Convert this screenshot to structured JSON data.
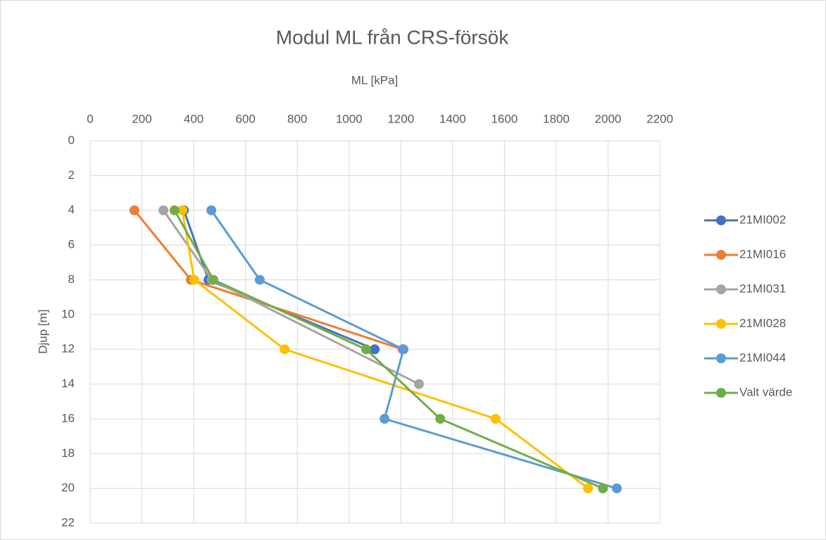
{
  "chart_data": {
    "type": "line",
    "title": "Modul ML från CRS-försök",
    "x_label": "ML [kPa]",
    "y_label": "Djup [m]",
    "xlim": [
      0,
      2200
    ],
    "xticks": [
      0,
      200,
      400,
      600,
      800,
      1000,
      1200,
      1400,
      1600,
      1800,
      2000,
      2200
    ],
    "ylim": [
      0,
      22
    ],
    "yticks": [
      0,
      2,
      4,
      6,
      8,
      10,
      12,
      14,
      16,
      18,
      20,
      22
    ],
    "y_inverted": true,
    "x_axis_position": "top",
    "grid": true,
    "legend": "right",
    "series": [
      {
        "name": "21MI002",
        "color": "#4472c4",
        "x": [
          362,
          457,
          1099
        ],
        "values": [
          4,
          8,
          12
        ]
      },
      {
        "name": "21MI016",
        "color": "#ed7d31",
        "x": [
          171,
          389,
          1207
        ],
        "values": [
          4,
          8,
          12
        ]
      },
      {
        "name": "21MI031",
        "color": "#a5a5a5",
        "x": [
          283,
          470,
          1270
        ],
        "values": [
          4,
          8,
          14
        ]
      },
      {
        "name": "21MI028",
        "color": "#ffc000",
        "x": [
          356,
          402,
          751,
          1566,
          1923
        ],
        "values": [
          4,
          8,
          12,
          16,
          20
        ]
      },
      {
        "name": "21MI044",
        "color": "#5b9bd5",
        "x": [
          468,
          655,
          1210,
          1137,
          2034
        ],
        "values": [
          4,
          8,
          12,
          16,
          20
        ]
      },
      {
        "name": "Valt värde",
        "color": "#70ad47",
        "x": [
          326,
          476,
          1066,
          1352,
          1980
        ],
        "values": [
          4,
          8,
          12,
          16,
          20
        ]
      }
    ]
  }
}
